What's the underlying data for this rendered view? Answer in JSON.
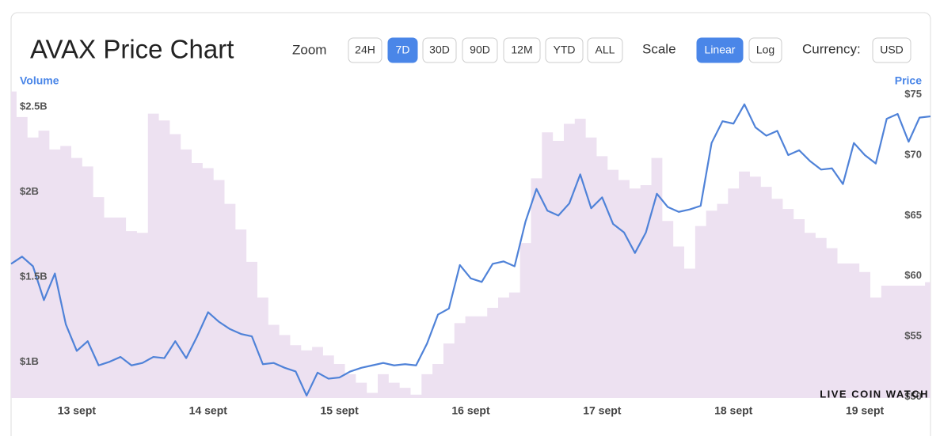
{
  "header": {
    "title": "AVAX Price Chart",
    "zoom_label": "Zoom",
    "zoom_options": [
      "24H",
      "7D",
      "30D",
      "90D",
      "12M",
      "YTD",
      "ALL"
    ],
    "zoom_selected": 1,
    "scale_label": "Scale",
    "scale_options": [
      "Linear",
      "Log"
    ],
    "scale_selected": 0,
    "currency_label": "Currency:",
    "currency": "USD"
  },
  "chart_data": {
    "type": "line",
    "categories": [
      null,
      null,
      null,
      null,
      null,
      null,
      "13 sept",
      null,
      null,
      null,
      null,
      null,
      null,
      null,
      null,
      null,
      null,
      null,
      "14 sept",
      null,
      null,
      null,
      null,
      null,
      null,
      null,
      null,
      null,
      null,
      null,
      "15 sept",
      null,
      null,
      null,
      null,
      null,
      null,
      null,
      null,
      null,
      null,
      null,
      "16 sept",
      null,
      null,
      null,
      null,
      null,
      null,
      null,
      null,
      null,
      null,
      null,
      "17 sept",
      null,
      null,
      null,
      null,
      null,
      null,
      null,
      null,
      null,
      null,
      null,
      "18 sept",
      null,
      null,
      null,
      null,
      null,
      null,
      null,
      null,
      null,
      null,
      null,
      "19 sept",
      null,
      null,
      null,
      null,
      null,
      null
    ],
    "series": [
      {
        "name": "Volume",
        "kind": "area",
        "axis": "y",
        "color": "#ede1f1",
        "values": [
          2590000000.0,
          2440000000.0,
          2320000000.0,
          2360000000.0,
          2250000000.0,
          2270000000.0,
          2200000000.0,
          2150000000.0,
          1970000000.0,
          1850000000.0,
          1850000000.0,
          1770000000.0,
          1760000000.0,
          2460000000.0,
          2420000000.0,
          2340000000.0,
          2250000000.0,
          2170000000.0,
          2140000000.0,
          2070000000.0,
          1930000000.0,
          1780000000.0,
          1590000000.0,
          1380000000.0,
          1220000000.0,
          1160000000.0,
          1100000000.0,
          1070000000.0,
          1090000000.0,
          1040000000.0,
          990000000.0,
          930000000.0,
          880000000.0,
          820000000.0,
          930000000.0,
          880000000.0,
          850000000.0,
          810000000.0,
          930000000.0,
          990000000.0,
          1110000000.0,
          1230000000.0,
          1270000000.0,
          1270000000.0,
          1320000000.0,
          1380000000.0,
          1410000000.0,
          1700000000.0,
          2080000000.0,
          2350000000.0,
          2300000000.0,
          2400000000.0,
          2430000000.0,
          2320000000.0,
          2210000000.0,
          2130000000.0,
          2070000000.0,
          2020000000.0,
          2040000000.0,
          2200000000.0,
          1830000000.0,
          1680000000.0,
          1550000000.0,
          1800000000.0,
          1890000000.0,
          1930000000.0,
          2020000000.0,
          2120000000.0,
          2090000000.0,
          2030000000.0,
          1960000000.0,
          1900000000.0,
          1840000000.0,
          1760000000.0,
          1730000000.0,
          1670000000.0,
          1580000000.0,
          1580000000.0,
          1530000000.0,
          1380000000.0,
          1450000000.0,
          1450000000.0,
          1450000000.0,
          1450000000.0,
          1470000000.0
        ]
      },
      {
        "name": "Price",
        "kind": "line",
        "axis": "y2",
        "color": "#4f82d8",
        "values": [
          61.0,
          61.6,
          60.8,
          58.0,
          60.2,
          56.0,
          53.8,
          54.6,
          52.6,
          52.9,
          53.3,
          52.6,
          52.8,
          53.3,
          53.2,
          54.6,
          53.2,
          55.0,
          57.0,
          56.2,
          55.6,
          55.2,
          55.0,
          52.7,
          52.8,
          52.4,
          52.1,
          50.1,
          52.0,
          51.5,
          51.6,
          52.1,
          52.4,
          52.6,
          52.8,
          52.6,
          52.7,
          52.6,
          54.4,
          56.8,
          57.3,
          60.9,
          59.8,
          59.5,
          61.0,
          61.2,
          60.8,
          64.5,
          67.2,
          65.4,
          65.0,
          66.0,
          68.4,
          65.6,
          66.5,
          64.3,
          63.6,
          61.9,
          63.6,
          66.8,
          65.7,
          65.3,
          65.5,
          65.8,
          71.0,
          72.8,
          72.6,
          74.2,
          72.3,
          71.6,
          72.0,
          70.0,
          70.4,
          69.5,
          68.8,
          68.9,
          67.6,
          71.0,
          70.0,
          69.3,
          73.0,
          73.4,
          71.1,
          73.1,
          73.2
        ]
      }
    ],
    "ylim": [
      790000000.0,
      2593000000.0
    ],
    "yticks": [
      {
        "value": 1000000000.0,
        "label": "$1B"
      },
      {
        "value": 1500000000.0,
        "label": "$1.5B"
      },
      {
        "value": 2000000000.0,
        "label": "$2B"
      },
      {
        "value": 2500000000.0,
        "label": "$2.5B"
      }
    ],
    "y2lim": [
      49.9,
      75.3
    ],
    "y2ticks": [
      {
        "value": 50,
        "label": "$50"
      },
      {
        "value": 55,
        "label": "$55"
      },
      {
        "value": 60,
        "label": "$60"
      },
      {
        "value": 65,
        "label": "$65"
      },
      {
        "value": 70,
        "label": "$70"
      },
      {
        "value": 75,
        "label": "$75"
      }
    ],
    "grid": false,
    "watermark": "LIVE COIN WATCH"
  }
}
